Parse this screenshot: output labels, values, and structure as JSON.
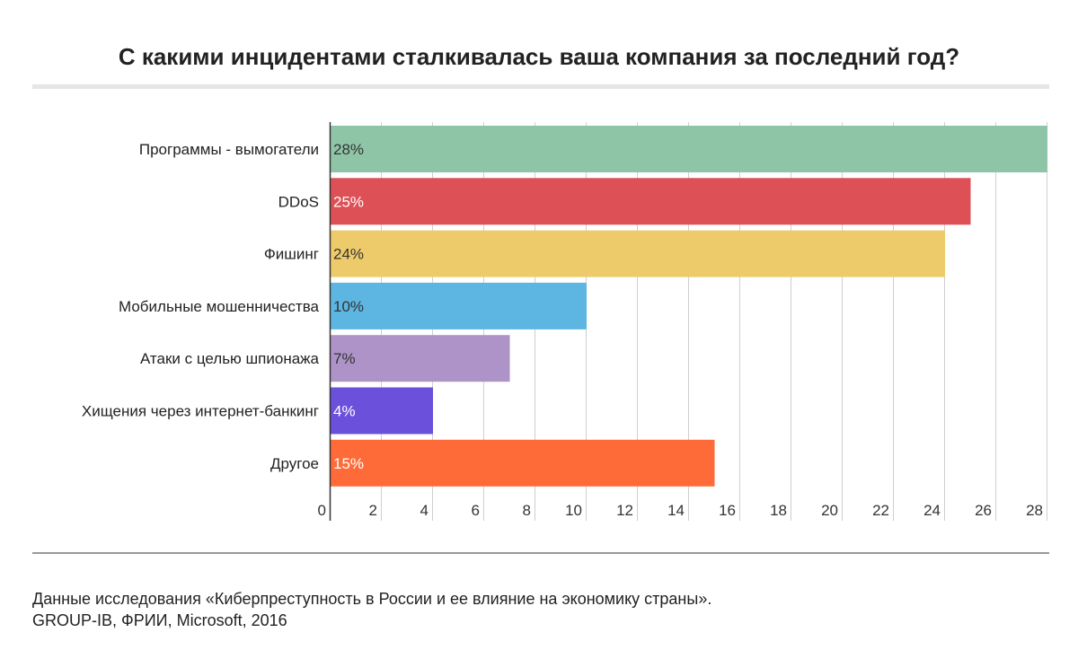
{
  "title": "С какими инцидентами сталкивалась ваша компания за последний год?",
  "footer": {
    "line1": "Данные исследования «Киберпреступность в России и ее влияние на экономику страны».",
    "line2": "GROUP-IB, ФРИИ, Microsoft, 2016"
  },
  "chart_data": {
    "type": "bar",
    "orientation": "horizontal",
    "title": "С какими инцидентами сталкивалась ваша компания за последний год?",
    "categories": [
      "Программы - вымогатели",
      "DDoS",
      "Фишинг",
      "Мобильные мошенничества",
      "Атаки с целью шпионажа",
      "Хищения через интернет-банкинг",
      "Другое"
    ],
    "values": [
      28,
      25,
      24,
      10,
      7,
      4,
      15
    ],
    "value_labels": [
      "28%",
      "25%",
      "24%",
      "10%",
      "7%",
      "4%",
      "15%"
    ],
    "colors": [
      "#8fc5a7",
      "#dd5056",
      "#eecb6a",
      "#5db6e2",
      "#ad93c8",
      "#6b50dc",
      "#fe6b39"
    ],
    "label_colors": [
      "#333333",
      "#ffffff",
      "#333333",
      "#333333",
      "#333333",
      "#ffffff",
      "#ffffff"
    ],
    "x_ticks": [
      0,
      2,
      4,
      6,
      8,
      10,
      12,
      14,
      16,
      18,
      20,
      22,
      24,
      26,
      28
    ],
    "xlim": [
      0,
      28
    ],
    "grid": true,
    "xlabel": "",
    "ylabel": ""
  }
}
